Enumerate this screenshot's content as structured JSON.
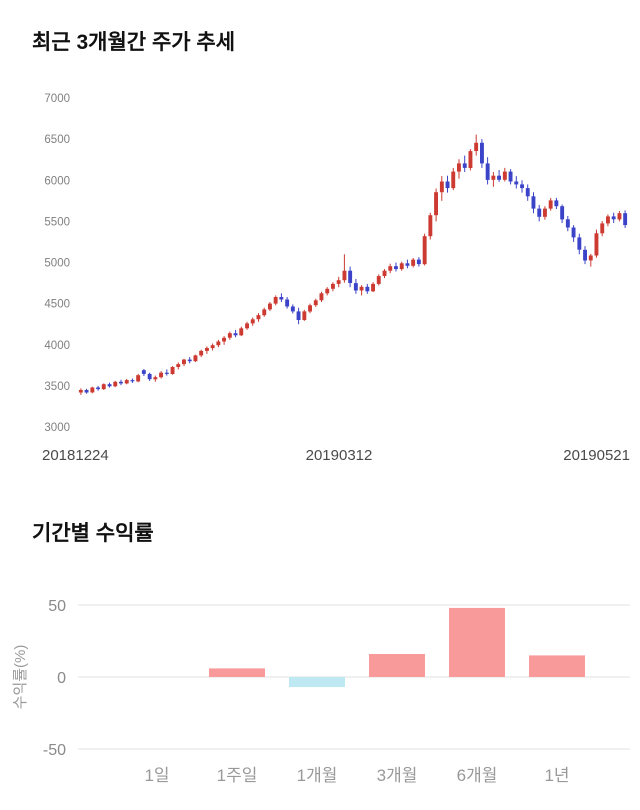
{
  "chart_data": [
    {
      "type": "candlestick",
      "title": "최근 3개월간 주가 추세",
      "x_labels": [
        "20181224",
        "20190312",
        "20190521"
      ],
      "y_ticks": [
        7000,
        6500,
        6000,
        5500,
        5000,
        4500,
        4000,
        3500,
        3000
      ],
      "ylim": [
        3000,
        7000
      ],
      "up_color": "#cc3a31",
      "down_color": "#3b43c8",
      "candles": [
        [
          3420,
          3470,
          3390,
          3450
        ],
        [
          3450,
          3465,
          3405,
          3420
        ],
        [
          3420,
          3490,
          3410,
          3480
        ],
        [
          3480,
          3500,
          3440,
          3460
        ],
        [
          3460,
          3530,
          3450,
          3520
        ],
        [
          3520,
          3540,
          3480,
          3495
        ],
        [
          3495,
          3560,
          3485,
          3550
        ],
        [
          3550,
          3575,
          3510,
          3530
        ],
        [
          3530,
          3585,
          3520,
          3570
        ],
        [
          3570,
          3590,
          3535,
          3555
        ],
        [
          3555,
          3645,
          3545,
          3630
        ],
        [
          3690,
          3705,
          3620,
          3645
        ],
        [
          3645,
          3660,
          3560,
          3580
        ],
        [
          3580,
          3625,
          3550,
          3605
        ],
        [
          3605,
          3680,
          3590,
          3660
        ],
        [
          3660,
          3700,
          3625,
          3645
        ],
        [
          3645,
          3740,
          3635,
          3730
        ],
        [
          3730,
          3785,
          3700,
          3765
        ],
        [
          3765,
          3830,
          3740,
          3820
        ],
        [
          3820,
          3850,
          3775,
          3800
        ],
        [
          3800,
          3880,
          3790,
          3870
        ],
        [
          3870,
          3940,
          3850,
          3925
        ],
        [
          3925,
          3980,
          3890,
          3960
        ],
        [
          3960,
          4015,
          3930,
          3995
        ],
        [
          3995,
          4060,
          3970,
          4040
        ],
        [
          4040,
          4105,
          4000,
          4085
        ],
        [
          4085,
          4160,
          4060,
          4140
        ],
        [
          4140,
          4180,
          4090,
          4115
        ],
        [
          4115,
          4220,
          4105,
          4200
        ],
        [
          4200,
          4280,
          4180,
          4260
        ],
        [
          4260,
          4330,
          4230,
          4310
        ],
        [
          4310,
          4385,
          4280,
          4360
        ],
        [
          4360,
          4450,
          4340,
          4430
        ],
        [
          4430,
          4520,
          4410,
          4500
        ],
        [
          4500,
          4600,
          4480,
          4580
        ],
        [
          4580,
          4625,
          4520,
          4550
        ],
        [
          4550,
          4580,
          4440,
          4465
        ],
        [
          4465,
          4490,
          4380,
          4405
        ],
        [
          4405,
          4450,
          4250,
          4300
        ],
        [
          4300,
          4425,
          4290,
          4405
        ],
        [
          4405,
          4500,
          4385,
          4480
        ],
        [
          4480,
          4560,
          4460,
          4540
        ],
        [
          4540,
          4645,
          4520,
          4625
        ],
        [
          4625,
          4700,
          4600,
          4680
        ],
        [
          4680,
          4760,
          4650,
          4740
        ],
        [
          4740,
          4825,
          4700,
          4785
        ],
        [
          4785,
          5100,
          4755,
          4900
        ],
        [
          4900,
          4950,
          4700,
          4750
        ],
        [
          4750,
          4800,
          4620,
          4660
        ],
        [
          4660,
          4725,
          4600,
          4705
        ],
        [
          4705,
          4740,
          4620,
          4650
        ],
        [
          4650,
          4760,
          4640,
          4740
        ],
        [
          4740,
          4855,
          4720,
          4835
        ],
        [
          4835,
          4920,
          4810,
          4900
        ],
        [
          4900,
          4985,
          4870,
          4955
        ],
        [
          4955,
          5000,
          4890,
          4920
        ],
        [
          4920,
          5010,
          4900,
          4990
        ],
        [
          4990,
          5035,
          4930,
          4960
        ],
        [
          4960,
          5055,
          4940,
          5035
        ],
        [
          5035,
          5065,
          4950,
          4980
        ],
        [
          4980,
          5350,
          4965,
          5320
        ],
        [
          5320,
          5605,
          5280,
          5575
        ],
        [
          5575,
          5900,
          5500,
          5855
        ],
        [
          5855,
          6050,
          5750,
          5985
        ],
        [
          5985,
          6055,
          5850,
          5905
        ],
        [
          5905,
          6150,
          5880,
          6105
        ],
        [
          6105,
          6255,
          6020,
          6205
        ],
        [
          6205,
          6300,
          6100,
          6150
        ],
        [
          6150,
          6380,
          6120,
          6355
        ],
        [
          6355,
          6555,
          6300,
          6455
        ],
        [
          6455,
          6500,
          6150,
          6205
        ],
        [
          6205,
          6280,
          5950,
          6005
        ],
        [
          6005,
          6100,
          5920,
          6055
        ],
        [
          6055,
          6125,
          5980,
          6005
        ],
        [
          6005,
          6150,
          5985,
          6105
        ],
        [
          6105,
          6135,
          5950,
          5985
        ],
        [
          5985,
          6050,
          5900,
          5950
        ],
        [
          5950,
          6000,
          5850,
          5905
        ],
        [
          5905,
          5950,
          5750,
          5805
        ],
        [
          5805,
          5855,
          5600,
          5655
        ],
        [
          5655,
          5700,
          5500,
          5555
        ],
        [
          5555,
          5685,
          5520,
          5655
        ],
        [
          5655,
          5785,
          5630,
          5755
        ],
        [
          5755,
          5785,
          5650,
          5685
        ],
        [
          5685,
          5705,
          5480,
          5525
        ],
        [
          5525,
          5565,
          5380,
          5425
        ],
        [
          5425,
          5455,
          5250,
          5305
        ],
        [
          5305,
          5350,
          5100,
          5155
        ],
        [
          5155,
          5200,
          4980,
          5025
        ],
        [
          5025,
          5105,
          4950,
          5085
        ],
        [
          5085,
          5400,
          5060,
          5355
        ],
        [
          5355,
          5505,
          5320,
          5475
        ],
        [
          5475,
          5585,
          5440,
          5560
        ],
        [
          5560,
          5605,
          5480,
          5525
        ],
        [
          5525,
          5625,
          5500,
          5600
        ],
        [
          5600,
          5635,
          5420,
          5455
        ]
      ]
    },
    {
      "type": "bar",
      "title": "기간별 수익률",
      "ylabel": "수익률(%)",
      "categories": [
        "1일",
        "1주일",
        "1개월",
        "3개월",
        "6개월",
        "1년"
      ],
      "values": [
        0,
        6,
        -7,
        16,
        48,
        15
      ],
      "y_ticks": [
        50,
        0,
        -50
      ],
      "ylim": [
        -50,
        50
      ],
      "grid": true,
      "legend": "none",
      "positive_color": "#f79a99",
      "negative_color": "#bfe9f2",
      "grid_color": "#e0e0e0"
    }
  ]
}
